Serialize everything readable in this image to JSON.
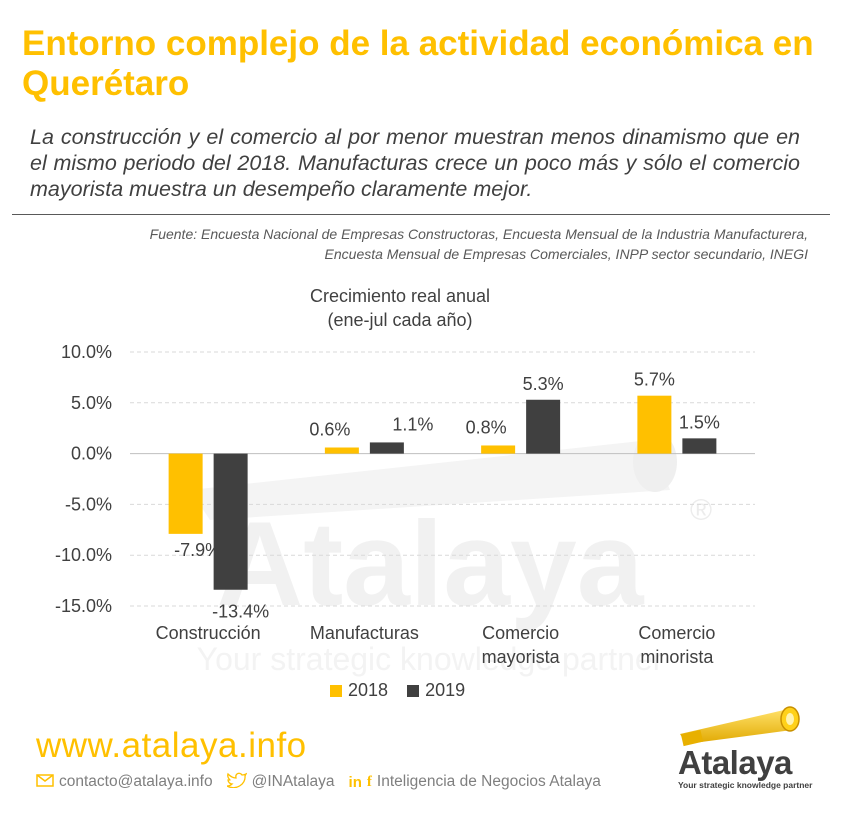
{
  "header": {
    "title": "Entorno complejo de la actividad económica en Querétaro",
    "subtitle": "La construcción y el comercio al por menor muestran menos dinamismo que en el mismo periodo del 2018. Manufacturas crece un poco más y sólo el comercio mayorista muestra un desempeño claramente mejor.",
    "source": "Fuente: Encuesta Nacional de Empresas Constructoras, Encuesta Mensual de la Industria Manufacturera, Encuesta Mensual de Empresas Comerciales, INPP sector secundario, INEGI"
  },
  "chart_data": {
    "type": "bar",
    "title": "Crecimiento real anual (ene-jul cada año)",
    "categories": [
      [
        "Construcción"
      ],
      [
        "Manufacturas"
      ],
      [
        "Comercio",
        "mayorista"
      ],
      [
        "Comercio",
        "minorista"
      ]
    ],
    "series": [
      {
        "name": "2018",
        "color": "#FFC000",
        "values": [
          -7.9,
          0.6,
          0.8,
          5.7
        ],
        "labels": [
          "-7.9%",
          "0.6%",
          "0.8%",
          "5.7%"
        ]
      },
      {
        "name": "2019",
        "color": "#404040",
        "values": [
          -13.4,
          1.1,
          5.3,
          1.5
        ],
        "labels": [
          "-13.4%",
          "1.1%",
          "5.3%",
          "1.5%"
        ]
      }
    ],
    "y_ticks": [
      10,
      5,
      0,
      -5,
      -10,
      -15
    ],
    "y_tick_labels": [
      "10.0%",
      "5.0%",
      "0.0%",
      "-5.0%",
      "-10.0%",
      "-15.0%"
    ],
    "ylim": [
      -15,
      10
    ],
    "grid": true,
    "legend": "bottom"
  },
  "watermark": {
    "word": "Atalaya",
    "tagline": "Your strategic knowledge partner",
    "mark": "®"
  },
  "footer": {
    "url": "www.atalaya.info",
    "email": "contacto@atalaya.info",
    "twitter": "@INAtalaya",
    "social": "Inteligencia de Negocios Atalaya",
    "email_icon": "envelope-icon",
    "twitter_icon": "twitter-icon",
    "linkedin_icon": "linkedin-icon",
    "facebook_icon": "facebook-icon",
    "linkedin_glyph": "in",
    "facebook_glyph": "f"
  },
  "logo": {
    "word": "Atalaya",
    "tagline": "Your strategic knowledge partner"
  },
  "colors": {
    "accent": "#FFC000",
    "dark": "#404040"
  }
}
